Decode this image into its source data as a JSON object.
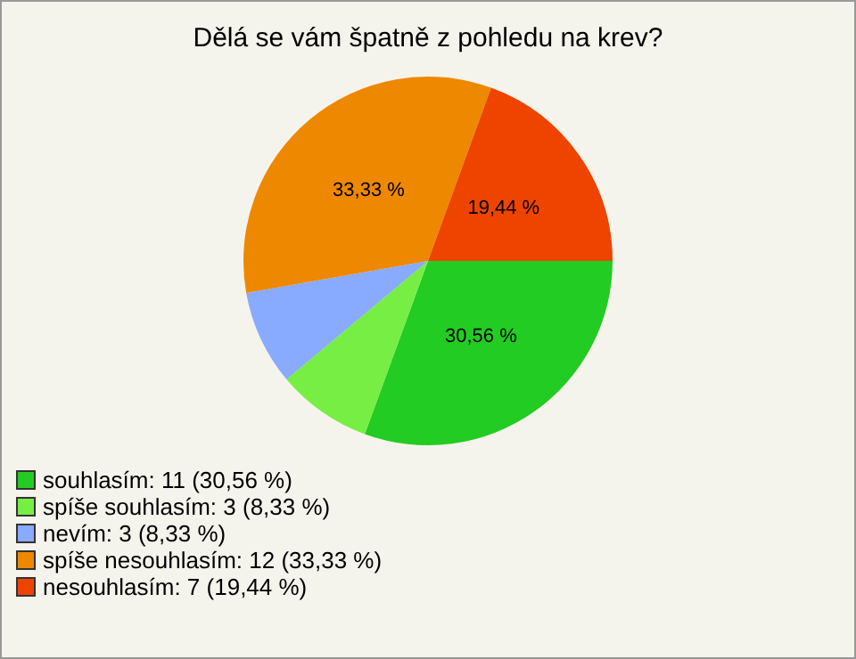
{
  "chart_data": {
    "type": "pie",
    "title": "Dělá se vám špatně z pohledu na krev?",
    "categories": [
      "souhlasím: 11 (30,56 %)",
      "spíše souhlasím: 3 (8,33 %)",
      "nevím: 3 (8,33 %)",
      "spíše nesouhlasím: 12 (33,33 %)",
      "nesouhlasím: 7 (19,44 %)"
    ],
    "values": [
      30.56,
      8.33,
      8.33,
      33.33,
      19.44
    ],
    "colors": [
      "#22cc22",
      "#77ee44",
      "#88aaff",
      "#ee8800",
      "#ee4400"
    ],
    "value_labels": [
      "30,56 %",
      null,
      null,
      "33,33 %",
      "19,44 %"
    ],
    "legend": "bottom left"
  }
}
